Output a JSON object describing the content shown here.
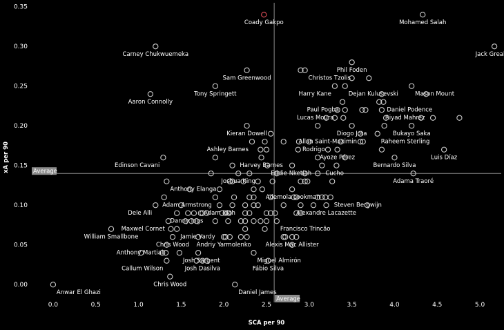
{
  "chart_data": {
    "type": "scatter",
    "title": "",
    "xlabel": "SCA per 90",
    "ylabel": "xA per 90",
    "xlim": [
      -0.25,
      5.25
    ],
    "ylim": [
      -0.012,
      0.355
    ],
    "x_ticks": [
      "0.0",
      "0.5",
      "1.0",
      "1.5",
      "2.0",
      "2.5",
      "3.0",
      "3.5",
      "4.0",
      "4.5",
      "5.0"
    ],
    "y_ticks": [
      "0.00",
      "0.05",
      "0.10",
      "0.15",
      "0.20",
      "0.25",
      "0.30",
      "0.35"
    ],
    "grid": false,
    "colors": {
      "background": "#000000",
      "marker": "#cccccc",
      "highlight": "#e8505b",
      "avg_line": "#8c8c8c",
      "avg_box": "#8c8c8c"
    },
    "average_x": 2.59,
    "average_y": 0.14,
    "average_label": "Average",
    "points": [
      {
        "name": "Coady Gakpo",
        "x": 2.47,
        "y": 0.34,
        "highlight": true,
        "anchor": "middle"
      },
      {
        "name": "Mohamed Salah",
        "x": 4.33,
        "y": 0.34,
        "anchor": "middle"
      },
      {
        "name": "Carney Chukwuemeka",
        "x": 1.2,
        "y": 0.3,
        "anchor": "middle"
      },
      {
        "name": "Jack Grealish",
        "x": 5.17,
        "y": 0.3,
        "anchor": "middle"
      },
      {
        "name": "Phil Foden",
        "x": 3.5,
        "y": 0.28,
        "anchor": "middle"
      },
      {
        "name": "Sam Greenwood",
        "x": 2.27,
        "y": 0.27,
        "anchor": "middle"
      },
      {
        "name": "Christos Tzolis",
        "x": 2.95,
        "y": 0.27,
        "anchor": "start"
      },
      {
        "name": "",
        "x": 2.9,
        "y": 0.27
      },
      {
        "name": "Tony Springett",
        "x": 1.9,
        "y": 0.25,
        "anchor": "middle"
      },
      {
        "name": "Harry Kane",
        "x": 3.3,
        "y": 0.25,
        "anchor": "end"
      },
      {
        "name": "Dejan Kulusevski",
        "x": 3.42,
        "y": 0.25,
        "anchor": "start"
      },
      {
        "name": "Mason Mount",
        "x": 4.2,
        "y": 0.25,
        "anchor": "start"
      },
      {
        "name": "",
        "x": 3.5,
        "y": 0.26
      },
      {
        "name": "",
        "x": 3.7,
        "y": 0.26
      },
      {
        "name": "Aaron Connolly",
        "x": 1.14,
        "y": 0.24,
        "anchor": "middle"
      },
      {
        "name": "",
        "x": 4.37,
        "y": 0.24
      },
      {
        "name": "Paul Pogba",
        "x": 3.39,
        "y": 0.23,
        "anchor": "end"
      },
      {
        "name": "Daniel Podence",
        "x": 3.87,
        "y": 0.23,
        "anchor": "start"
      },
      {
        "name": "",
        "x": 3.82,
        "y": 0.23
      },
      {
        "name": "",
        "x": 3.85,
        "y": 0.24
      },
      {
        "name": "Lucas Moura",
        "x": 3.33,
        "y": 0.22,
        "anchor": "end"
      },
      {
        "name": "Riyad Mahrez",
        "x": 3.85,
        "y": 0.22,
        "anchor": "start"
      },
      {
        "name": "",
        "x": 3.42,
        "y": 0.22
      },
      {
        "name": "",
        "x": 3.62,
        "y": 0.22
      },
      {
        "name": "",
        "x": 3.66,
        "y": 0.22
      },
      {
        "name": "",
        "x": 3.2,
        "y": 0.21
      },
      {
        "name": "",
        "x": 3.3,
        "y": 0.21
      },
      {
        "name": "",
        "x": 3.4,
        "y": 0.21
      },
      {
        "name": "",
        "x": 3.9,
        "y": 0.21
      },
      {
        "name": "",
        "x": 4.31,
        "y": 0.21
      },
      {
        "name": "",
        "x": 4.45,
        "y": 0.21
      },
      {
        "name": "",
        "x": 4.76,
        "y": 0.21
      },
      {
        "name": "Kieran Dowell",
        "x": 2.27,
        "y": 0.2,
        "anchor": "middle"
      },
      {
        "name": "Diogo Jota",
        "x": 3.5,
        "y": 0.2,
        "anchor": "middle"
      },
      {
        "name": "Bukayo Saka",
        "x": 4.2,
        "y": 0.2,
        "anchor": "middle"
      },
      {
        "name": "",
        "x": 3.1,
        "y": 0.2
      },
      {
        "name": "",
        "x": 3.88,
        "y": 0.2
      },
      {
        "name": "Allan Saint-Maximin",
        "x": 3.6,
        "y": 0.19,
        "anchor": "end"
      },
      {
        "name": "Raheem Sterling",
        "x": 3.8,
        "y": 0.19,
        "anchor": "start"
      },
      {
        "name": "",
        "x": 2.55,
        "y": 0.19
      },
      {
        "name": "Ashley Barnes",
        "x": 2.33,
        "y": 0.18,
        "anchor": "end"
      },
      {
        "name": "Rodrigo",
        "x": 2.88,
        "y": 0.18,
        "anchor": "start"
      },
      {
        "name": "",
        "x": 2.48,
        "y": 0.18
      },
      {
        "name": "",
        "x": 2.7,
        "y": 0.18
      },
      {
        "name": "",
        "x": 3.0,
        "y": 0.18
      },
      {
        "name": "",
        "x": 3.37,
        "y": 0.18
      },
      {
        "name": "",
        "x": 3.6,
        "y": 0.18
      },
      {
        "name": "",
        "x": 3.63,
        "y": 0.18
      },
      {
        "name": "Ayoze Pérez",
        "x": 3.33,
        "y": 0.17,
        "anchor": "middle"
      },
      {
        "name": "Luis Díaz",
        "x": 4.58,
        "y": 0.17,
        "anchor": "middle"
      },
      {
        "name": "",
        "x": 2.43,
        "y": 0.17
      },
      {
        "name": "",
        "x": 2.5,
        "y": 0.17
      },
      {
        "name": "",
        "x": 2.87,
        "y": 0.17
      },
      {
        "name": "",
        "x": 3.22,
        "y": 0.17
      },
      {
        "name": "",
        "x": 3.85,
        "y": 0.17
      },
      {
        "name": "Harvey Barnes",
        "x": 2.44,
        "y": 0.16,
        "anchor": "middle"
      },
      {
        "name": "Bernardo Silva",
        "x": 4.0,
        "y": 0.16,
        "anchor": "middle"
      },
      {
        "name": "",
        "x": 1.9,
        "y": 0.16
      },
      {
        "name": "",
        "x": 3.1,
        "y": 0.16
      },
      {
        "name": "",
        "x": 3.42,
        "y": 0.16
      },
      {
        "name": "Edinson Cavani",
        "x": 1.29,
        "y": 0.16,
        "anchor": "end"
      },
      {
        "name": "Eddie Nketiah",
        "x": 2.51,
        "y": 0.15,
        "anchor": "start"
      },
      {
        "name": "Cucho",
        "x": 3.15,
        "y": 0.15,
        "anchor": "start"
      },
      {
        "name": "",
        "x": 2.1,
        "y": 0.15
      },
      {
        "name": "",
        "x": 2.8,
        "y": 0.15
      },
      {
        "name": "",
        "x": 3.32,
        "y": 0.15
      },
      {
        "name": "Joshua King",
        "x": 2.17,
        "y": 0.14,
        "anchor": "middle"
      },
      {
        "name": "Adama Traoré",
        "x": 4.22,
        "y": 0.14,
        "anchor": "middle"
      },
      {
        "name": "",
        "x": 1.85,
        "y": 0.14
      },
      {
        "name": "",
        "x": 2.3,
        "y": 0.14
      },
      {
        "name": "",
        "x": 2.62,
        "y": 0.14
      },
      {
        "name": "",
        "x": 2.95,
        "y": 0.14
      },
      {
        "name": "",
        "x": 3.1,
        "y": 0.14
      },
      {
        "name": "Anthony Elanga",
        "x": 1.33,
        "y": 0.13,
        "anchor": "start"
      },
      {
        "name": "",
        "x": 2.07,
        "y": 0.13
      },
      {
        "name": "",
        "x": 2.1,
        "y": 0.13
      },
      {
        "name": "",
        "x": 2.23,
        "y": 0.13
      },
      {
        "name": "",
        "x": 2.4,
        "y": 0.13
      },
      {
        "name": "",
        "x": 2.57,
        "y": 0.13
      },
      {
        "name": "",
        "x": 2.9,
        "y": 0.13
      },
      {
        "name": "",
        "x": 2.95,
        "y": 0.13
      },
      {
        "name": "",
        "x": 2.98,
        "y": 0.13
      },
      {
        "name": "",
        "x": 3.27,
        "y": 0.13
      },
      {
        "name": "Ademola Lookman",
        "x": 2.45,
        "y": 0.12,
        "anchor": "start"
      },
      {
        "name": "",
        "x": 1.6,
        "y": 0.12
      },
      {
        "name": "",
        "x": 1.95,
        "y": 0.12
      },
      {
        "name": "",
        "x": 2.35,
        "y": 0.12
      },
      {
        "name": "",
        "x": 2.8,
        "y": 0.12
      },
      {
        "name": "Adam Armstrong",
        "x": 1.9,
        "y": 0.11,
        "anchor": "end"
      },
      {
        "name": "Steven Bergwijn",
        "x": 3.25,
        "y": 0.11,
        "anchor": "start"
      },
      {
        "name": "",
        "x": 1.3,
        "y": 0.11
      },
      {
        "name": "",
        "x": 2.12,
        "y": 0.11
      },
      {
        "name": "",
        "x": 2.3,
        "y": 0.11
      },
      {
        "name": "",
        "x": 2.35,
        "y": 0.11
      },
      {
        "name": "",
        "x": 2.55,
        "y": 0.11
      },
      {
        "name": "",
        "x": 2.82,
        "y": 0.11
      },
      {
        "name": "",
        "x": 2.85,
        "y": 0.11
      },
      {
        "name": "",
        "x": 3.1,
        "y": 0.11
      },
      {
        "name": "",
        "x": 3.15,
        "y": 0.11
      },
      {
        "name": "",
        "x": 3.19,
        "y": 0.11
      },
      {
        "name": "Dele Alli",
        "x": 1.2,
        "y": 0.1,
        "anchor": "end"
      },
      {
        "name": "Adam Idah",
        "x": 1.95,
        "y": 0.1,
        "anchor": "middle"
      },
      {
        "name": "Alexandre Lacazette",
        "x": 3.2,
        "y": 0.1,
        "anchor": "middle"
      },
      {
        "name": "",
        "x": 1.5,
        "y": 0.1
      },
      {
        "name": "",
        "x": 2.1,
        "y": 0.1
      },
      {
        "name": "",
        "x": 2.25,
        "y": 0.1
      },
      {
        "name": "",
        "x": 2.35,
        "y": 0.1
      },
      {
        "name": "",
        "x": 2.4,
        "y": 0.1
      },
      {
        "name": "",
        "x": 2.7,
        "y": 0.1
      },
      {
        "name": "",
        "x": 2.9,
        "y": 0.1
      },
      {
        "name": "",
        "x": 3.05,
        "y": 0.1
      },
      {
        "name": "",
        "x": 3.68,
        "y": 0.1
      },
      {
        "name": "Danny Ings",
        "x": 1.8,
        "y": 0.09,
        "anchor": "end"
      },
      {
        "name": "",
        "x": 1.45,
        "y": 0.09
      },
      {
        "name": "",
        "x": 1.58,
        "y": 0.09
      },
      {
        "name": "",
        "x": 1.65,
        "y": 0.09
      },
      {
        "name": "",
        "x": 1.73,
        "y": 0.09
      },
      {
        "name": "",
        "x": 1.75,
        "y": 0.09
      },
      {
        "name": "",
        "x": 1.98,
        "y": 0.09
      },
      {
        "name": "",
        "x": 2.02,
        "y": 0.09
      },
      {
        "name": "",
        "x": 2.06,
        "y": 0.09
      },
      {
        "name": "",
        "x": 2.25,
        "y": 0.09
      },
      {
        "name": "",
        "x": 2.3,
        "y": 0.09
      },
      {
        "name": "",
        "x": 2.5,
        "y": 0.09
      },
      {
        "name": "",
        "x": 2.55,
        "y": 0.09
      },
      {
        "name": "",
        "x": 2.6,
        "y": 0.09
      },
      {
        "name": "",
        "x": 2.85,
        "y": 0.09
      },
      {
        "name": "",
        "x": 2.9,
        "y": 0.09
      },
      {
        "name": "Maxwel Cornet",
        "x": 1.35,
        "y": 0.08,
        "anchor": "end"
      },
      {
        "name": "Francisco Trincão",
        "x": 2.62,
        "y": 0.08,
        "anchor": "start"
      },
      {
        "name": "",
        "x": 1.55,
        "y": 0.08
      },
      {
        "name": "",
        "x": 1.62,
        "y": 0.08
      },
      {
        "name": "",
        "x": 1.68,
        "y": 0.08
      },
      {
        "name": "",
        "x": 1.9,
        "y": 0.08
      },
      {
        "name": "",
        "x": 2.05,
        "y": 0.08
      },
      {
        "name": "",
        "x": 2.2,
        "y": 0.08
      },
      {
        "name": "",
        "x": 2.25,
        "y": 0.08
      },
      {
        "name": "",
        "x": 2.35,
        "y": 0.08
      },
      {
        "name": "",
        "x": 2.43,
        "y": 0.08
      },
      {
        "name": "",
        "x": 2.5,
        "y": 0.08
      },
      {
        "name": "Jamie Vardy",
        "x": 1.45,
        "y": 0.07,
        "anchor": "start"
      },
      {
        "name": "William Smallbone",
        "x": 0.68,
        "y": 0.07,
        "anchor": "middle"
      },
      {
        "name": "",
        "x": 1.38,
        "y": 0.07
      },
      {
        "name": "",
        "x": 2.25,
        "y": 0.07
      },
      {
        "name": "",
        "x": 2.48,
        "y": 0.07
      },
      {
        "name": "Chris Wood",
        "x": 1.4,
        "y": 0.06,
        "anchor": "middle"
      },
      {
        "name": "Andriy Yarmolenko",
        "x": 2.0,
        "y": 0.06,
        "anchor": "middle"
      },
      {
        "name": "Alexis Mac Allister",
        "x": 2.8,
        "y": 0.06,
        "anchor": "middle"
      },
      {
        "name": "",
        "x": 1.7,
        "y": 0.06
      },
      {
        "name": "",
        "x": 2.02,
        "y": 0.06
      },
      {
        "name": "",
        "x": 2.07,
        "y": 0.06
      },
      {
        "name": "",
        "x": 2.2,
        "y": 0.06
      },
      {
        "name": "",
        "x": 2.27,
        "y": 0.06
      },
      {
        "name": "",
        "x": 2.7,
        "y": 0.06
      },
      {
        "name": "",
        "x": 2.72,
        "y": 0.06
      },
      {
        "name": "",
        "x": 2.85,
        "y": 0.06
      },
      {
        "name": "Anthony Martial",
        "x": 1.33,
        "y": 0.05,
        "anchor": "end"
      },
      {
        "name": "",
        "x": 2.8,
        "y": 0.05
      },
      {
        "name": "Josh Sargent",
        "x": 1.48,
        "y": 0.04,
        "anchor": "start"
      },
      {
        "name": "Miguel Almirón",
        "x": 2.35,
        "y": 0.04,
        "anchor": "start"
      },
      {
        "name": "",
        "x": 1.03,
        "y": 0.04
      },
      {
        "name": "",
        "x": 1.28,
        "y": 0.04
      },
      {
        "name": "",
        "x": 1.32,
        "y": 0.04
      },
      {
        "name": "",
        "x": 1.7,
        "y": 0.04
      },
      {
        "name": "Callum Wilson",
        "x": 1.33,
        "y": 0.03,
        "anchor": "end"
      },
      {
        "name": "Josh Dasilva",
        "x": 1.75,
        "y": 0.03,
        "anchor": "middle"
      },
      {
        "name": "Fábio Silva",
        "x": 2.52,
        "y": 0.03,
        "anchor": "middle"
      },
      {
        "name": "",
        "x": 1.68,
        "y": 0.03
      },
      {
        "name": "",
        "x": 1.8,
        "y": 0.03
      },
      {
        "name": "Chris Wood",
        "x": 1.37,
        "y": 0.01,
        "anchor": "middle"
      },
      {
        "name": "Anwar El Ghazi",
        "x": 0.0,
        "y": 0.0,
        "anchor": "start"
      },
      {
        "name": "Daniel James",
        "x": 2.13,
        "y": 0.0,
        "anchor": "start"
      }
    ]
  }
}
